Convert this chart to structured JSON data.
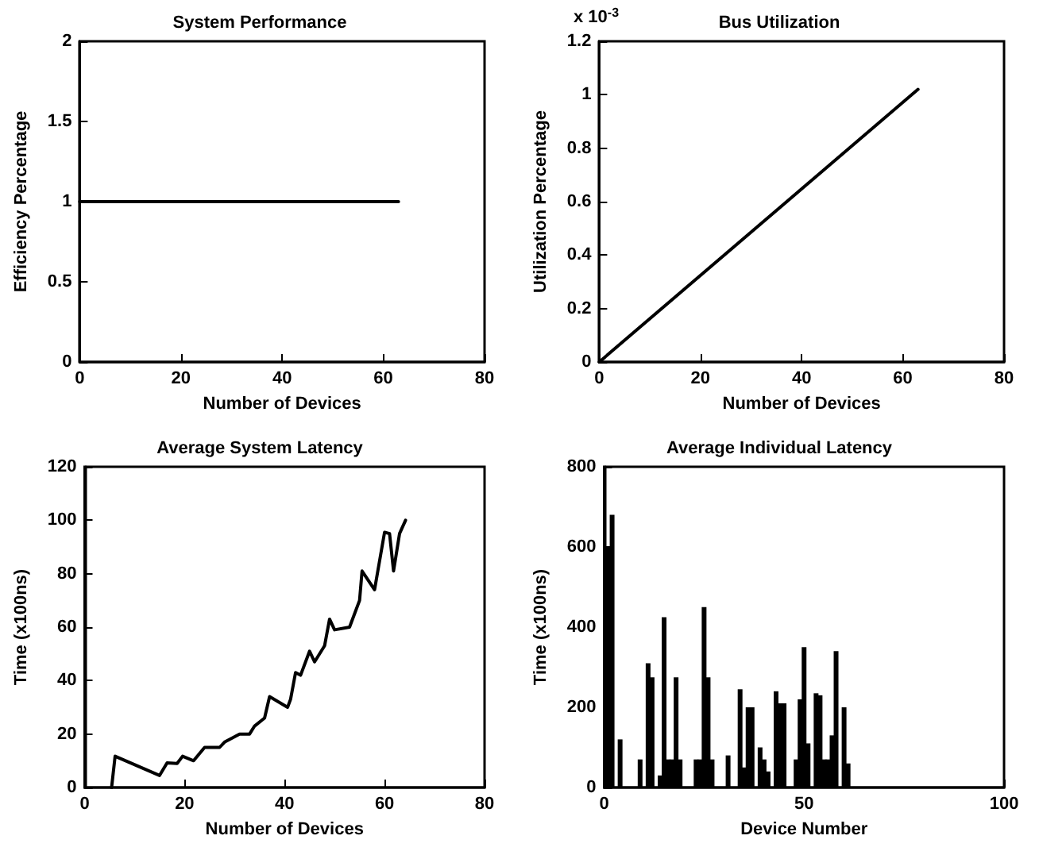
{
  "chart_data": [
    {
      "type": "line",
      "title": "System Performance",
      "xlabel": "Number of Devices",
      "ylabel": "Efficiency Percentage",
      "series": [
        {
          "color": "#000000",
          "x": [
            0,
            63
          ],
          "values": [
            1,
            1
          ]
        }
      ],
      "xlim": [
        0,
        80
      ],
      "xticks": [
        0,
        20,
        40,
        60,
        80
      ],
      "ylim": [
        0,
        2
      ],
      "yticks": [
        0,
        0.5,
        1,
        1.5,
        2
      ],
      "marker": "none",
      "line_style": "solid"
    },
    {
      "type": "line",
      "title": "Bus Utilization",
      "xlabel": "Number of Devices",
      "ylabel": "Utilization Percentage",
      "annotations": [
        "x 10$^{-3}$"
      ],
      "series": [
        {
          "color": "#000000",
          "x": [
            0,
            63
          ],
          "values": [
            0,
            1.02
          ]
        }
      ],
      "xlim": [
        0,
        80
      ],
      "xticks": [
        0,
        20,
        40,
        60,
        80
      ],
      "ylim": [
        0,
        1.2
      ],
      "yticks": [
        0,
        0.2,
        0.4,
        0.6,
        0.8,
        1,
        1.2
      ],
      "marker": "none",
      "line_style": "solid"
    },
    {
      "type": "line",
      "title": "Average System Latency",
      "xlabel": "Number of Devices",
      "ylabel": "Time (x100ns)",
      "series": [
        {
          "color": "#000000",
          "x": [
            5.4,
            6.1,
            15,
            16.5,
            18.5,
            19.6,
            21.8,
            24,
            27,
            28,
            31,
            33,
            34,
            36,
            37,
            40.6,
            41.2,
            42.2,
            43.2,
            45,
            46,
            48,
            49,
            50,
            53,
            55,
            55.5,
            58,
            60,
            61,
            61.8,
            63,
            64.2
          ],
          "values": [
            0,
            11.7,
            4.5,
            9.2,
            9,
            11.7,
            10,
            15,
            15,
            17,
            20,
            20,
            23,
            26,
            34,
            30,
            33,
            43,
            42,
            51,
            47,
            53,
            63,
            59,
            60,
            70,
            81,
            74,
            95.5,
            95,
            81,
            95,
            100
          ]
        }
      ],
      "xlim": [
        0,
        80
      ],
      "xticks": [
        0,
        20,
        40,
        60,
        80
      ],
      "ylim": [
        0,
        120
      ],
      "yticks": [
        0,
        20,
        40,
        60,
        80,
        100,
        120
      ],
      "marker": "none",
      "line_style": "solid"
    },
    {
      "type": "bar",
      "title": "Average Individual Latency",
      "xlabel": "Device Number",
      "ylabel": "Time (x100ns)",
      "series": [
        {
          "color": "#000000",
          "x": [
            1,
            2,
            3,
            4,
            5,
            6,
            7,
            8,
            9,
            10,
            11,
            12,
            13,
            14,
            15,
            16,
            17,
            18,
            19,
            20,
            21,
            22,
            23,
            24,
            25,
            26,
            27,
            28,
            29,
            30,
            31,
            32,
            33,
            34,
            35,
            36,
            37,
            38,
            39,
            40,
            41,
            42,
            43,
            44,
            45,
            46,
            47,
            48,
            49,
            50,
            51,
            52,
            53,
            54,
            55,
            56,
            57,
            58,
            59,
            60,
            61,
            62,
            63
          ],
          "values": [
            600,
            680,
            0,
            120,
            0,
            0,
            0,
            0,
            70,
            0,
            310,
            275,
            0,
            30,
            425,
            70,
            70,
            275,
            70,
            0,
            0,
            0,
            70,
            70,
            450,
            275,
            70,
            0,
            0,
            0,
            80,
            0,
            0,
            245,
            50,
            200,
            200,
            0,
            100,
            70,
            40,
            0,
            240,
            210,
            210,
            0,
            0,
            70,
            220,
            350,
            110,
            0,
            235,
            230,
            70,
            70,
            130,
            340,
            0,
            200,
            60,
            0,
            0
          ]
        }
      ],
      "xlim": [
        0,
        100
      ],
      "xticks": [
        0,
        50,
        100
      ],
      "ylim": [
        0,
        800
      ],
      "yticks": [
        0,
        200,
        400,
        600,
        800
      ]
    }
  ]
}
